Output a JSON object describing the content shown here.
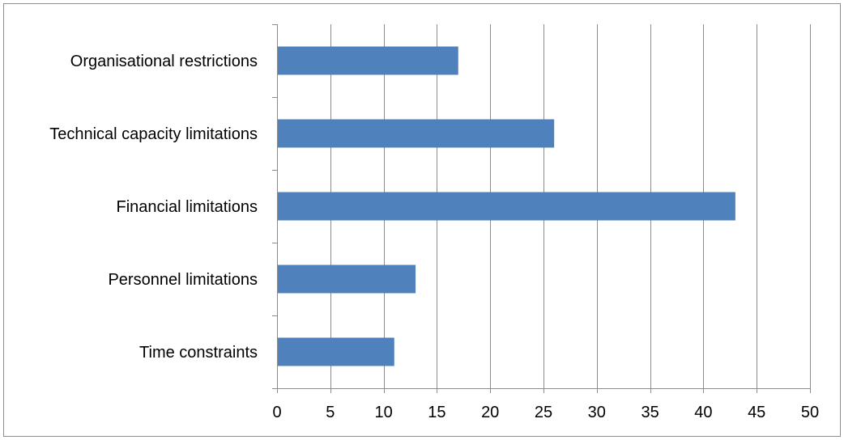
{
  "chart_data": {
    "type": "bar",
    "orientation": "horizontal",
    "title": "",
    "xlabel": "",
    "ylabel": "",
    "categories": [
      "Organisational restrictions",
      "Technical capacity limitations",
      "Financial limitations",
      "Personnel limitations",
      "Time constraints"
    ],
    "values": [
      17,
      26,
      43,
      13,
      11
    ],
    "xlim": [
      0,
      50
    ],
    "x_ticks": [
      "0",
      "5",
      "10",
      "15",
      "20",
      "25",
      "30",
      "35",
      "40",
      "45",
      "50"
    ],
    "grid": "vertical major gridlines",
    "legend": "none",
    "colors": {
      "bar": "#4f81bd",
      "grid": "#8c8c8c",
      "axis": "#8c8c8c",
      "text": "#000000"
    }
  }
}
